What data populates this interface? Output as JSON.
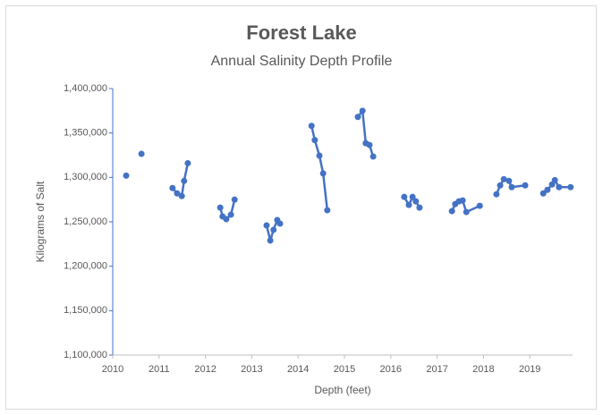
{
  "chart_data": {
    "type": "line",
    "title": "Forest Lake",
    "subtitle": "Annual Salinity Depth Profile",
    "x_label": "Depth (feet)",
    "y_label": "Kilograms of Salt",
    "xlim": [
      2010,
      2020
    ],
    "xticks": [
      2010,
      2011,
      2012,
      2013,
      2014,
      2015,
      2016,
      2017,
      2018,
      2019
    ],
    "ylim": [
      1100000,
      1400000
    ],
    "yticks": [
      {
        "value": 1100000,
        "label": "1,100,000"
      },
      {
        "value": 1150000,
        "label": "1,150,000"
      },
      {
        "value": 1200000,
        "label": "1,200,000"
      },
      {
        "value": 1250000,
        "label": "1,250,000"
      },
      {
        "value": 1300000,
        "label": "1,300,000"
      },
      {
        "value": 1350000,
        "label": "1,350,000"
      },
      {
        "value": 1400000,
        "label": "1,400,000"
      }
    ],
    "grid": false,
    "series": [
      {
        "color": "#4472c4",
        "x": [
          2010.29,
          null,
          2010.62,
          null,
          2011.29,
          2011.39,
          2011.49,
          2011.54,
          2011.62,
          null,
          2012.32,
          2012.37,
          2012.45,
          2012.55,
          2012.63,
          null,
          2013.32,
          2013.4,
          2013.47,
          2013.55,
          2013.61,
          null,
          2014.29,
          2014.36,
          2014.46,
          2014.54,
          2014.63,
          null,
          2015.29,
          2015.39,
          2015.46,
          2015.54,
          2015.62,
          null,
          2016.29,
          2016.39,
          2016.47,
          2016.54,
          2016.62,
          null,
          2017.32,
          2017.39,
          2017.47,
          2017.55,
          2017.63,
          2017.92,
          null,
          2018.28,
          2018.36,
          2018.44,
          2018.55,
          2018.61,
          2018.9,
          null,
          2019.29,
          2019.38,
          2019.48,
          2019.54,
          2019.63,
          2019.88
        ],
        "values": [
          1302000,
          null,
          1326500,
          null,
          1288000,
          1282000,
          1279000,
          1296000,
          1316000,
          null,
          1266000,
          1256000,
          1253000,
          1258000,
          1275000,
          null,
          1246000,
          1229000,
          1241000,
          1252000,
          1248000,
          null,
          1358000,
          1342000,
          1324500,
          1304500,
          1263000,
          null,
          1368000,
          1375000,
          1338500,
          1336500,
          1323500,
          null,
          1278000,
          1269000,
          1278000,
          1273000,
          1266000,
          null,
          1262000,
          1270000,
          1273000,
          1274000,
          1261000,
          1268000,
          null,
          1281000,
          1291000,
          1298000,
          1296000,
          1289000,
          1291000,
          null,
          1282000,
          1286000,
          1292000,
          1297000,
          1289000,
          1289000
        ]
      }
    ]
  }
}
